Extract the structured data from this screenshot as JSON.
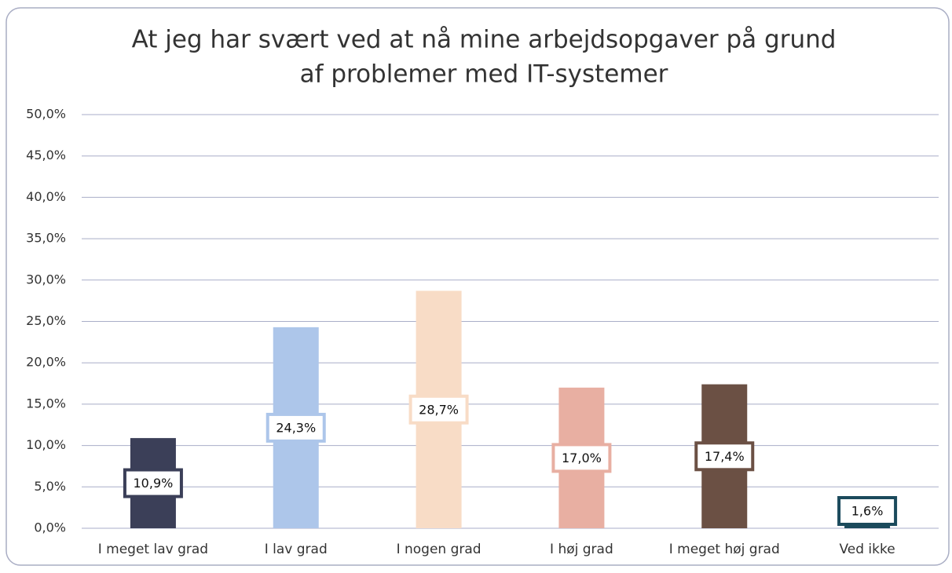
{
  "chart_data": {
    "type": "bar",
    "title": [
      "At jeg har svært ved at nå mine arbejdsopgaver på grund",
      "af problemer med IT-systemer"
    ],
    "categories": [
      "I meget lav grad",
      "I lav grad",
      "I nogen grad",
      "I høj grad",
      "I meget høj grad",
      "Ved ikke"
    ],
    "values": [
      10.9,
      24.3,
      28.7,
      17.0,
      17.4,
      1.6
    ],
    "value_labels": [
      "10,9%",
      "24,3%",
      "28,7%",
      "17,0%",
      "17,4%",
      "1,6%"
    ],
    "colors": [
      "#3b3f58",
      "#adc6ea",
      "#f8dcc6",
      "#e8afa2",
      "#6b5044",
      "#1b4a5c"
    ],
    "ylim": [
      0,
      50
    ],
    "yticks": [
      {
        "value": 0,
        "label": "0,0%"
      },
      {
        "value": 5,
        "label": "5,0%"
      },
      {
        "value": 10,
        "label": "10,0%"
      },
      {
        "value": 15,
        "label": "15,0%"
      },
      {
        "value": 20,
        "label": "20,0%"
      },
      {
        "value": 25,
        "label": "25,0%"
      },
      {
        "value": 30,
        "label": "30,0%"
      },
      {
        "value": 35,
        "label": "35,0%"
      },
      {
        "value": 40,
        "label": "40,0%"
      },
      {
        "value": 45,
        "label": "45,0%"
      },
      {
        "value": 50,
        "label": "50,0%"
      }
    ],
    "grid": true
  }
}
